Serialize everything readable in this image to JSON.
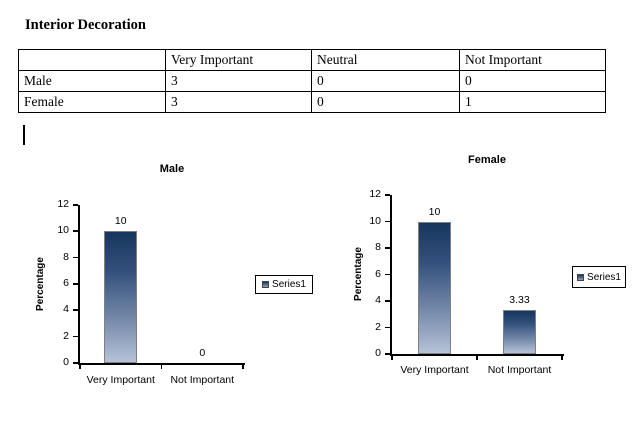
{
  "document": {
    "title": "Interior Decoration"
  },
  "table": {
    "headers": [
      "",
      "Very Important",
      "Neutral",
      "Not Important"
    ],
    "rows": [
      {
        "label": "Male",
        "values": [
          "3",
          "0",
          "0"
        ]
      },
      {
        "label": "Female",
        "values": [
          "3",
          "0",
          "1"
        ]
      }
    ]
  },
  "chart_data": [
    {
      "type": "bar",
      "title": "Male",
      "categories": [
        "Very Important",
        "Not Important"
      ],
      "values": [
        10,
        0
      ],
      "data_labels": [
        "10",
        "0"
      ],
      "xlabel": "",
      "ylabel": "Percentage",
      "ylim": [
        0,
        12
      ],
      "yticks": [
        0,
        2,
        4,
        6,
        8,
        10,
        12
      ],
      "legend": [
        "Series1"
      ],
      "legend_position": "right",
      "grid": false,
      "bar_color_top": "#17365D",
      "bar_color_bottom": "#B6C3D7",
      "bar_border_color": "#808080"
    },
    {
      "type": "bar",
      "title": "Female",
      "categories": [
        "Very Important",
        "Not Important"
      ],
      "values": [
        10,
        3.33
      ],
      "data_labels": [
        "10",
        "3.33"
      ],
      "xlabel": "",
      "ylabel": "Percentage",
      "ylim": [
        0,
        12
      ],
      "yticks": [
        0,
        2,
        4,
        6,
        8,
        10,
        12
      ],
      "legend": [
        "Series1"
      ],
      "legend_position": "right",
      "grid": false,
      "bar_color_top": "#17365D",
      "bar_color_bottom": "#B6C3D7",
      "bar_border_color": "#808080"
    }
  ]
}
